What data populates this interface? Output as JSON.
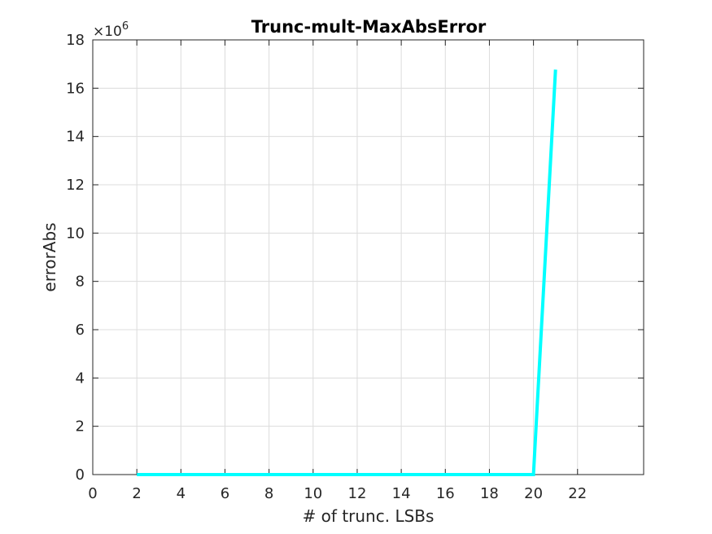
{
  "chart_data": {
    "type": "line",
    "title": "Trunc-mult-MaxAbsError",
    "xlabel": "# of trunc. LSBs",
    "ylabel": "errorAbs",
    "y_exponent": {
      "base": "×10",
      "power": "6"
    },
    "xlim": [
      0,
      25
    ],
    "ylim": [
      0,
      18
    ],
    "xticks": [
      0,
      2,
      4,
      6,
      8,
      10,
      12,
      14,
      16,
      18,
      20,
      22
    ],
    "yticks": [
      0,
      2,
      4,
      6,
      8,
      10,
      12,
      14,
      16,
      18
    ],
    "grid": true,
    "series": [
      {
        "color": "#00ffff",
        "x": [
          2,
          3,
          4,
          5,
          6,
          7,
          8,
          9,
          10,
          11,
          12,
          13,
          14,
          15,
          16,
          17,
          18,
          19,
          20,
          21
        ],
        "y": [
          0,
          0,
          0,
          0,
          0,
          0,
          0,
          0,
          0,
          0,
          0,
          0,
          0,
          0,
          0,
          0,
          0,
          0,
          0,
          16.77
        ]
      }
    ]
  }
}
